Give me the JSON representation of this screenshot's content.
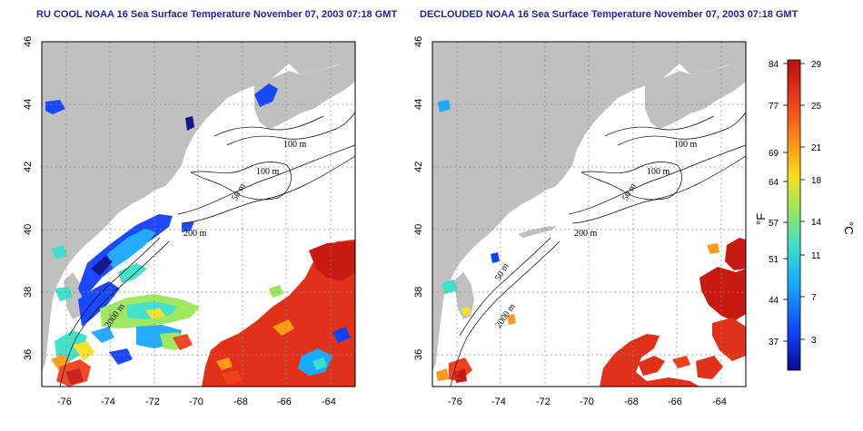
{
  "titles": {
    "left": "RU COOL NOAA 16 Sea Surface Temperature November 07, 2003 07:18 GMT",
    "right": "DECLOUDED NOAA 16 Sea Surface Temperature November 07, 2003 07:18 GMT"
  },
  "axes": {
    "lon_ticks": [
      "-76",
      "-74",
      "-72",
      "-70",
      "-68",
      "-66",
      "-64"
    ],
    "lat_ticks": [
      "36",
      "38",
      "40",
      "42",
      "44",
      "46"
    ],
    "lon_range": [
      -77.2,
      -63.0
    ],
    "lat_range": [
      35.0,
      46.0
    ],
    "grid": "dotted"
  },
  "contour_labels": {
    "left": [
      "100 m",
      "100 m",
      "50 m",
      "200 m",
      "2000 m"
    ],
    "right": [
      "100 m",
      "100 m",
      "50 m",
      "200 m",
      "50 m",
      "2000 m"
    ]
  },
  "colorbar": {
    "fahrenheit_ticks": [
      "84",
      "77",
      "69",
      "64",
      "57",
      "51",
      "44",
      "37"
    ],
    "celsius_ticks": [
      "29",
      "25",
      "21",
      "18",
      "14",
      "11",
      "7",
      "3"
    ],
    "fahrenheit_unit": "°F",
    "celsius_unit": "°C",
    "colors": [
      "#0a0a8c",
      "#1040ff",
      "#19a9ff",
      "#3de0c8",
      "#9be65a",
      "#f5e11e",
      "#ff9a14",
      "#f0401e",
      "#b4100e"
    ]
  },
  "colors": {
    "land": "#c0c0c0",
    "title": "#1f23a6",
    "warm_sst": "#e2311b",
    "hot_sst": "#c81a10"
  }
}
